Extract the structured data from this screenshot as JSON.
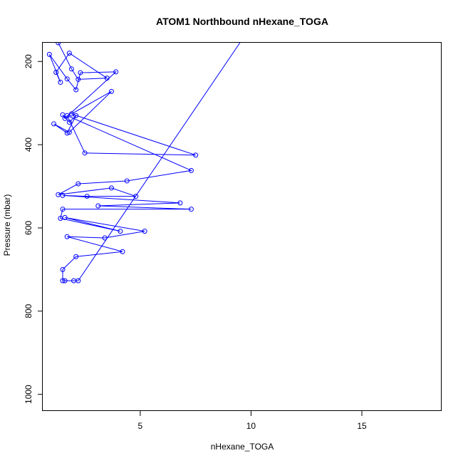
{
  "chart_data": {
    "type": "line",
    "title": "ATOM1 Northbound nHexane_TOGA",
    "xlabel": "nHexane_TOGA",
    "ylabel": "Pressure (mbar)",
    "xlim": [
      0.6,
      18.6
    ],
    "ylim": [
      1040,
      155
    ],
    "y_reversed": true,
    "x_ticks": [
      5,
      10,
      15
    ],
    "y_ticks": [
      200,
      400,
      600,
      800,
      1000
    ],
    "grid": false,
    "line_color": "#0000ff",
    "marker": "open-circle",
    "series": [
      {
        "x": [
          1.3,
          1.9,
          2.2,
          3.5,
          1.8,
          1.2,
          1.4,
          0.9,
          1.7,
          2.1,
          2.3,
          3.9,
          1.6,
          1.5,
          1.8,
          2.1,
          1.7,
          1.1,
          1.8,
          3.7,
          1.9,
          7.5,
          2.5,
          1.7,
          7.3,
          4.4,
          2.2,
          1.3,
          3.7,
          4.8,
          2.6,
          1.5,
          6.8,
          3.1,
          7.3,
          1.5,
          1.4,
          4.1,
          1.6,
          5.2,
          3.4,
          1.7,
          4.2,
          2.1,
          1.5,
          1.5,
          2.0,
          1.6,
          2.2,
          9.5
        ],
        "y": [
          155,
          218,
          243,
          240,
          180,
          226,
          250,
          183,
          242,
          268,
          227,
          225,
          337,
          328,
          346,
          330,
          372,
          350,
          370,
          272,
          326,
          425,
          420,
          330,
          462,
          487,
          494,
          520,
          504,
          524,
          524,
          522,
          540,
          547,
          555,
          555,
          577,
          608,
          575,
          608,
          624,
          621,
          657,
          669,
          700,
          727,
          727,
          727,
          727,
          155
        ]
      }
    ]
  }
}
